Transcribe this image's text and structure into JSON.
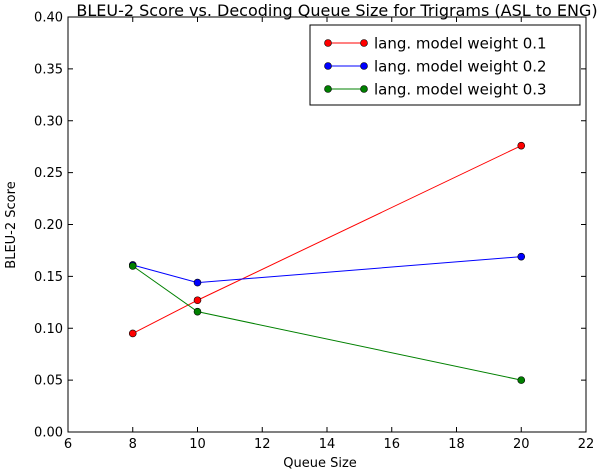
{
  "chart_data": {
    "type": "line",
    "title": "BLEU-2 Score vs. Decoding Queue Size for Trigrams (ASL to ENG)",
    "xlabel": "Queue Size",
    "ylabel": "BLEU-2 Score",
    "xlim": [
      6,
      22
    ],
    "ylim": [
      0.0,
      0.4
    ],
    "xticks": [
      "6",
      "8",
      "10",
      "12",
      "14",
      "16",
      "18",
      "20",
      "22"
    ],
    "yticks": [
      "0.00",
      "0.05",
      "0.10",
      "0.15",
      "0.20",
      "0.25",
      "0.30",
      "0.35",
      "0.40"
    ],
    "grid": false,
    "legend_position": "top-right",
    "x": [
      8,
      10,
      20
    ],
    "series": [
      {
        "name": "lang. model weight 0.1",
        "color": "#ff0000",
        "values": [
          0.095,
          0.127,
          0.276
        ]
      },
      {
        "name": "lang. model weight 0.2",
        "color": "#0000ff",
        "values": [
          0.161,
          0.144,
          0.169
        ]
      },
      {
        "name": "lang. model weight 0.3",
        "color": "#008000",
        "values": [
          0.16,
          0.116,
          0.05
        ]
      }
    ]
  }
}
